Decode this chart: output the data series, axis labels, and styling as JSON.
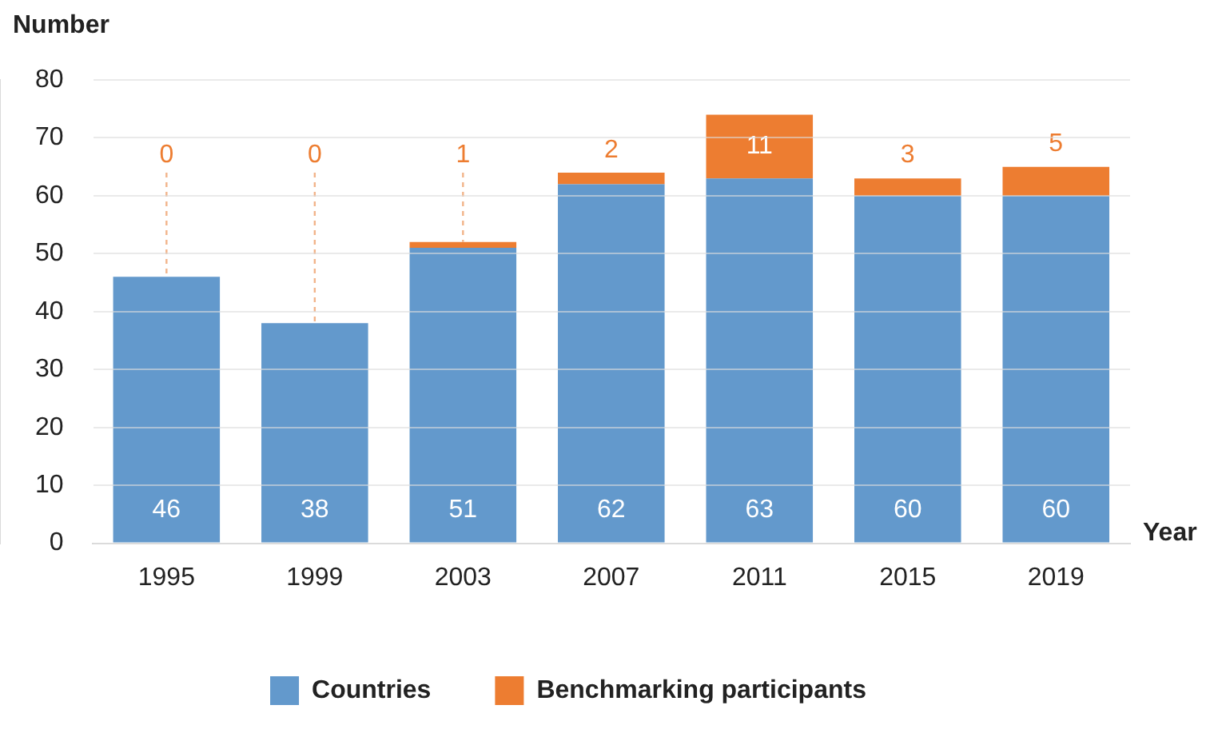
{
  "chart_data": {
    "type": "bar",
    "stacked": true,
    "xlabel": "Year",
    "ylabel": "Number",
    "categories": [
      "1995",
      "1999",
      "2003",
      "2007",
      "2011",
      "2015",
      "2019"
    ],
    "series": [
      {
        "name": "Countries",
        "color": "#6399cc",
        "values": [
          46,
          38,
          51,
          62,
          63,
          60,
          60
        ],
        "value_labels": [
          "46",
          "38",
          "51",
          "62",
          "63",
          "60",
          "60"
        ]
      },
      {
        "name": "Benchmarking participants",
        "color": "#ed7d31",
        "values": [
          0,
          0,
          1,
          2,
          11,
          3,
          5
        ],
        "value_labels": [
          null,
          null,
          "1",
          "2",
          "11",
          "3",
          "5"
        ]
      }
    ],
    "annotations": [
      {
        "text": "0",
        "x": "1995",
        "y": 46
      },
      {
        "text": "0",
        "x": "1999",
        "y": 38
      }
    ],
    "ylim": [
      0,
      80
    ],
    "yticks": [
      0,
      10,
      20,
      30,
      40,
      50,
      60,
      70,
      80
    ],
    "grid": "y",
    "legend": "bottom"
  }
}
